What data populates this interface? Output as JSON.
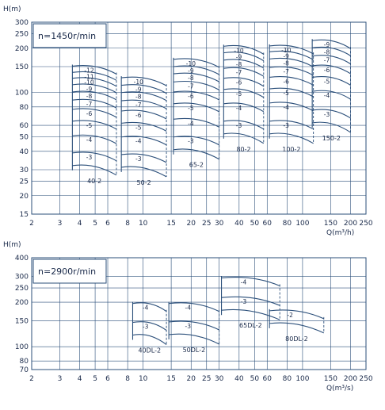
{
  "colors": {
    "line": "#2b4f7a",
    "text": "#1a2a4a",
    "background": "#ffffff"
  },
  "chart_data": [
    {
      "type": "line",
      "title": "",
      "label": "n=1450r/min",
      "xlabel": "Q(m³/h)",
      "ylabel": "H(m)",
      "x_scale": "log",
      "y_scale": "log",
      "xlim": [
        2,
        250
      ],
      "ylim": [
        15,
        300
      ],
      "x_ticks": [
        2,
        3,
        4,
        5,
        6,
        8,
        10,
        15,
        20,
        25,
        30,
        40,
        50,
        60,
        80,
        100,
        150,
        200,
        250
      ],
      "y_ticks": [
        15,
        20,
        25,
        30,
        40,
        50,
        60,
        80,
        100,
        150,
        200,
        250,
        300
      ],
      "grid": true,
      "families": [
        {
          "name": "40-2",
          "q_min": 3.6,
          "q_max": 6.8,
          "stages": [
            {
              "label": "-3",
              "h": 39
            },
            {
              "label": "-4",
              "h": 51
            },
            {
              "label": "-5",
              "h": 64
            },
            {
              "label": "-6",
              "h": 77
            },
            {
              "label": "-7",
              "h": 89
            },
            {
              "label": "-8",
              "h": 101
            },
            {
              "label": "-9",
              "h": 113
            },
            {
              "label": "-10",
              "h": 125
            },
            {
              "label": "-11",
              "h": 137
            },
            {
              "label": "-12",
              "h": 151
            }
          ]
        },
        {
          "name": "50-2",
          "q_min": 7.3,
          "q_max": 14,
          "stages": [
            {
              "label": "-3",
              "h": 38
            },
            {
              "label": "-4",
              "h": 50
            },
            {
              "label": "-5",
              "h": 62
            },
            {
              "label": "-6",
              "h": 75
            },
            {
              "label": "-7",
              "h": 88
            },
            {
              "label": "-8",
              "h": 100
            },
            {
              "label": "-9",
              "h": 112
            },
            {
              "label": "-10",
              "h": 126
            }
          ]
        },
        {
          "name": "65-2",
          "q_min": 15.5,
          "q_max": 30,
          "stages": [
            {
              "label": "-3",
              "h": 50
            },
            {
              "label": "-4",
              "h": 66
            },
            {
              "label": "-5",
              "h": 84
            },
            {
              "label": "-6",
              "h": 101
            },
            {
              "label": "-7",
              "h": 118
            },
            {
              "label": "-8",
              "h": 134
            },
            {
              "label": "-9",
              "h": 150
            },
            {
              "label": "-10",
              "h": 168
            }
          ]
        },
        {
          "name": "80-2",
          "q_min": 32,
          "q_max": 57,
          "stages": [
            {
              "label": "-3",
              "h": 64
            },
            {
              "label": "-4",
              "h": 84
            },
            {
              "label": "-5",
              "h": 105
            },
            {
              "label": "-6",
              "h": 125
            },
            {
              "label": "-7",
              "h": 146
            },
            {
              "label": "-8",
              "h": 166
            },
            {
              "label": "-9",
              "h": 186
            },
            {
              "label": "-10",
              "h": 206
            }
          ]
        },
        {
          "name": "100-2",
          "q_min": 62,
          "q_max": 117,
          "stages": [
            {
              "label": "-3",
              "h": 64
            },
            {
              "label": "-4",
              "h": 85
            },
            {
              "label": "-5",
              "h": 106
            },
            {
              "label": "-6",
              "h": 127
            },
            {
              "label": "-7",
              "h": 148
            },
            {
              "label": "-8",
              "h": 169
            },
            {
              "label": "-9",
              "h": 189
            },
            {
              "label": "-10",
              "h": 207
            }
          ]
        },
        {
          "name": "150-2",
          "q_min": 115,
          "q_max": 200,
          "stages": [
            {
              "label": "-3",
              "h": 76
            },
            {
              "label": "-4",
              "h": 102
            },
            {
              "label": "-5",
              "h": 127
            },
            {
              "label": "-6",
              "h": 152
            },
            {
              "label": "-7",
              "h": 177
            },
            {
              "label": "-8",
              "h": 201
            },
            {
              "label": "-9",
              "h": 225
            }
          ]
        }
      ]
    },
    {
      "type": "line",
      "title": "",
      "label": "n=2900r/min",
      "xlabel": "Q(m³/s)",
      "ylabel": "H(m)",
      "x_scale": "log",
      "y_scale": "log",
      "xlim": [
        2,
        250
      ],
      "ylim": [
        70,
        400
      ],
      "x_ticks": [
        2,
        3,
        4,
        5,
        6,
        8,
        10,
        15,
        20,
        25,
        30,
        40,
        50,
        60,
        80,
        100,
        150,
        200,
        250
      ],
      "y_ticks": [
        70,
        80,
        100,
        150,
        200,
        250,
        300,
        400
      ],
      "grid": true,
      "families": [
        {
          "name": "40DL-2",
          "q_min": 8.6,
          "q_max": 14,
          "stages": [
            {
              "label": "-3",
              "h": 146
            },
            {
              "label": "-4",
              "h": 196
            }
          ]
        },
        {
          "name": "50DL-2",
          "q_min": 14.5,
          "q_max": 30,
          "stages": [
            {
              "label": "-3",
              "h": 147
            },
            {
              "label": "-4",
              "h": 196
            }
          ]
        },
        {
          "name": "65DL-2",
          "q_min": 31,
          "q_max": 72,
          "stages": [
            {
              "label": "-3",
              "h": 215
            },
            {
              "label": "-4",
              "h": 292
            }
          ]
        },
        {
          "name": "80DL-2",
          "q_min": 62,
          "q_max": 136,
          "stages": [
            {
              "label": "-2",
              "h": 175
            }
          ]
        }
      ]
    }
  ]
}
